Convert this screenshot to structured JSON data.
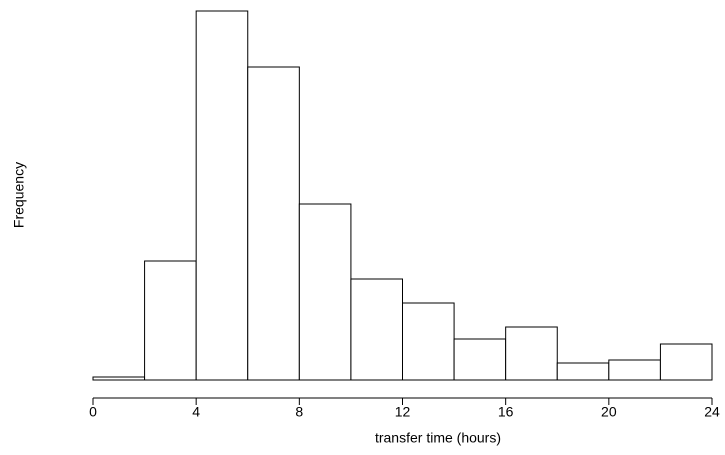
{
  "chart_data": {
    "type": "histogram",
    "xlabel": "transfer time (hours)",
    "ylabel": "Frequency",
    "bins": [
      0,
      2,
      4,
      6,
      8,
      10,
      12,
      14,
      16,
      18,
      20,
      22,
      24
    ],
    "values": [
      3,
      119,
      369,
      313,
      176,
      101,
      77,
      41,
      53,
      17,
      20,
      36
    ],
    "color": "#ffffff",
    "xlim": [
      0,
      24
    ],
    "xticks": [
      0,
      4,
      8,
      12,
      16,
      20,
      24
    ],
    "ylim": [
      0,
      369
    ]
  }
}
